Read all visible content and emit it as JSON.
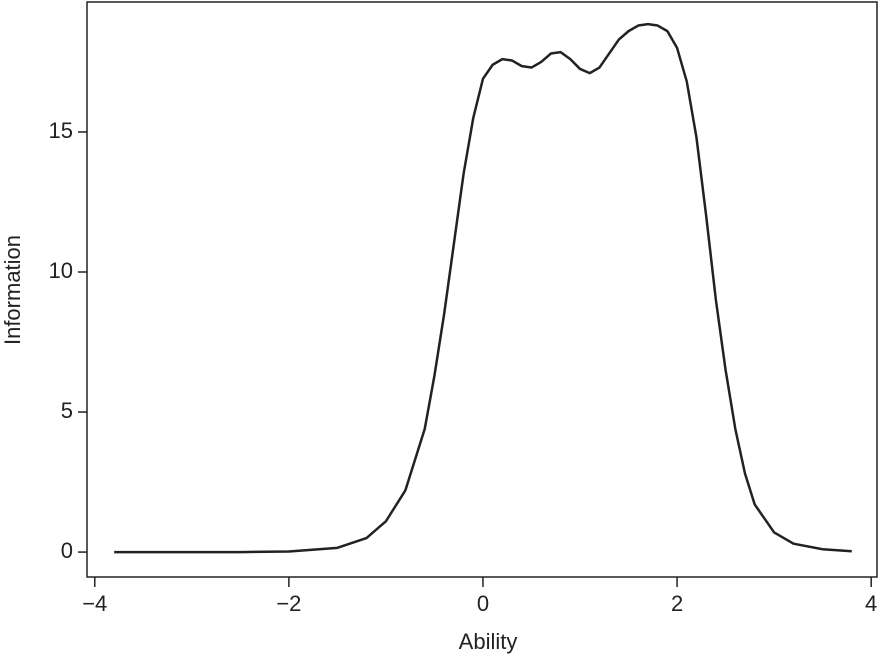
{
  "chart_data": {
    "type": "line",
    "x_label": "Ability",
    "y_label": "Information",
    "x": [
      -3.8,
      -3.0,
      -2.5,
      -2.0,
      -1.5,
      -1.2,
      -1.0,
      -0.8,
      -0.6,
      -0.5,
      -0.4,
      -0.3,
      -0.2,
      -0.1,
      0.0,
      0.1,
      0.2,
      0.3,
      0.4,
      0.5,
      0.6,
      0.7,
      0.8,
      0.9,
      1.0,
      1.1,
      1.2,
      1.3,
      1.4,
      1.5,
      1.6,
      1.7,
      1.8,
      1.9,
      2.0,
      2.1,
      2.2,
      2.3,
      2.4,
      2.5,
      2.6,
      2.7,
      2.8,
      3.0,
      3.2,
      3.5,
      3.8
    ],
    "series": [
      {
        "name": "Information",
        "color": "#222222",
        "values": [
          0,
          0,
          0,
          0.02,
          0.15,
          0.5,
          1.1,
          2.2,
          4.4,
          6.3,
          8.5,
          11.0,
          13.5,
          15.5,
          16.9,
          17.4,
          17.6,
          17.55,
          17.35,
          17.3,
          17.5,
          17.8,
          17.85,
          17.6,
          17.25,
          17.1,
          17.3,
          17.8,
          18.3,
          18.6,
          18.8,
          18.85,
          18.8,
          18.6,
          18.0,
          16.8,
          14.8,
          12.0,
          9.0,
          6.5,
          4.4,
          2.8,
          1.7,
          0.7,
          0.3,
          0.1,
          0.03
        ]
      }
    ],
    "xlim": [
      -4.08,
      4.06
    ],
    "ylim": [
      -0.89,
      19.64
    ],
    "xticks": [
      {
        "value": -4,
        "label": "−4"
      },
      {
        "value": -2,
        "label": "−2"
      },
      0,
      2,
      4
    ],
    "yticks": [
      0,
      5,
      10,
      15
    ]
  }
}
